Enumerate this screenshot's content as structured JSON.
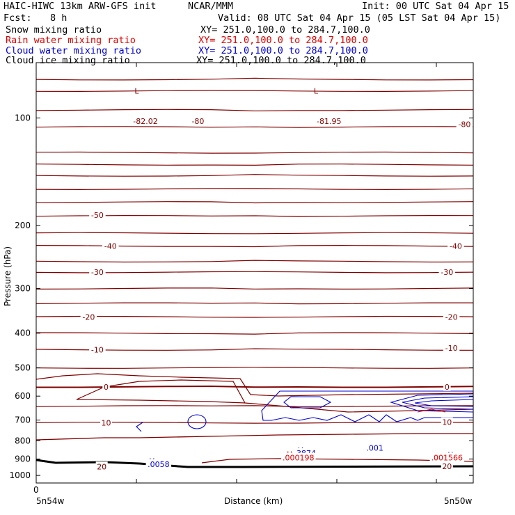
{
  "header": {
    "title_left": "HAIC-HIWC 13km ARW-GFS init",
    "org": "NCAR/MMM",
    "init": "Init: 00 UTC Sat 04 Apr 15",
    "fcst_label": "Fcst:",
    "fcst_value": "8 h",
    "valid": "Valid: 08 UTC Sat 04 Apr 15 (05 LST Sat 04 Apr 15)"
  },
  "legend": [
    {
      "name": "Snow mixing ratio",
      "xy": "XY= 251.0,100.0 to 284.7,100.0",
      "color": "#000000"
    },
    {
      "name": "Rain water mixing ratio",
      "xy": "XY= 251.0,100.0 to 284.7,100.0",
      "color": "#e00000"
    },
    {
      "name": "Cloud water mixing ratio",
      "xy": "XY= 251.0,100.0 to 284.7,100.0",
      "color": "#0000d0"
    },
    {
      "name": "Cloud ice mixing ratio",
      "xy": "XY= 251.0,100.0 to 284.7,100.0",
      "color": "#000000"
    }
  ],
  "chart_data": {
    "type": "line",
    "xlabel": "Distance (km)",
    "ylabel": "Pressure (hPa)",
    "x_tick_zero": "0",
    "x_start_label": "5n54w",
    "x_end_label": "5n50w",
    "y_ticks": [
      "100",
      "200",
      "300",
      "400",
      "500",
      "600",
      "700",
      "800",
      "900",
      "1000"
    ],
    "y_tick_values": [
      100,
      200,
      300,
      400,
      500,
      600,
      700,
      800,
      900,
      1000
    ],
    "ylim": [
      1050,
      70
    ],
    "temperature_labels": [
      {
        "text": "-82.02",
        "p": 102,
        "x": 0.25
      },
      {
        "text": "-80",
        "p": 102,
        "x": 0.37
      },
      {
        "text": "-81.95",
        "p": 102,
        "x": 0.67
      },
      {
        "text": "-80",
        "p": 104,
        "x": 0.98
      },
      {
        "text": "-50",
        "p": 187,
        "x": 0.14
      },
      {
        "text": "-40",
        "p": 228,
        "x": 0.17
      },
      {
        "text": "-40",
        "p": 228,
        "x": 0.96
      },
      {
        "text": "-30",
        "p": 270,
        "x": 0.14
      },
      {
        "text": "-30",
        "p": 270,
        "x": 0.94
      },
      {
        "text": "-20",
        "p": 360,
        "x": 0.12
      },
      {
        "text": "-20",
        "p": 360,
        "x": 0.95
      },
      {
        "text": "-10",
        "p": 445,
        "x": 0.14
      },
      {
        "text": "-10",
        "p": 440,
        "x": 0.95
      },
      {
        "text": "0",
        "p": 565,
        "x": 0.16
      },
      {
        "text": "0",
        "p": 565,
        "x": 0.94
      },
      {
        "text": "10",
        "p": 712,
        "x": 0.16
      },
      {
        "text": "10",
        "p": 710,
        "x": 0.94
      },
      {
        "text": "20",
        "p": 944,
        "x": 0.15
      },
      {
        "text": "20",
        "p": 942,
        "x": 0.94
      }
    ],
    "low_markers": [
      {
        "text": "L",
        "p": 84,
        "x": 0.23
      },
      {
        "text": "L",
        "p": 84,
        "x": 0.64
      }
    ],
    "isobar_levels": [
      78,
      84,
      95,
      106,
      125,
      135,
      145,
      158,
      172,
      188,
      210,
      228,
      252,
      270,
      300,
      330,
      360,
      400,
      445,
      500,
      565,
      640,
      712
    ],
    "cloud_water_labels": [
      {
        "text": "H",
        "p": 912,
        "x": 0.265,
        "color": "#0000d0"
      },
      {
        "text": ".0058",
        "p": 930,
        "x": 0.28,
        "color": "#0000d0"
      },
      {
        "text": "H",
        "p": 850,
        "x": 0.605,
        "color": "#0000d0"
      },
      {
        "text": ".3874",
        "p": 866,
        "x": 0.615,
        "color": "#0000d0"
      },
      {
        "text": ".001",
        "p": 838,
        "x": 0.775,
        "color": "#0000d0"
      },
      {
        "text": "H",
        "p": 875,
        "x": 0.948,
        "color": "#0000d0"
      }
    ],
    "rain_labels": [
      {
        "text": "H",
        "p": 872,
        "x": 0.58,
        "color": "#e00000"
      },
      {
        "text": ".000198",
        "p": 892,
        "x": 0.6,
        "color": "#e00000"
      },
      {
        "text": ".001566",
        "p": 892,
        "x": 0.94,
        "color": "#e00000"
      }
    ]
  }
}
